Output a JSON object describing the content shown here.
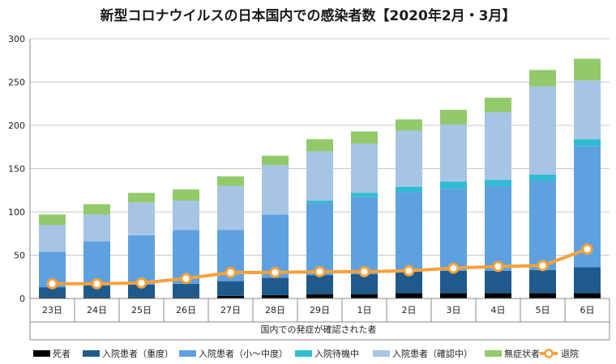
{
  "chart_data": {
    "type": "bar",
    "title": "新型コロナウイルスの日本国内での感染者数【2020年2月・3月】",
    "xlabel": "国内での発症が確認された者",
    "ylabel": "",
    "ylim": [
      0,
      300
    ],
    "yticks": [
      0,
      50,
      100,
      150,
      200,
      250,
      300
    ],
    "categories": [
      "23日",
      "24日",
      "25日",
      "26日",
      "27日",
      "28日",
      "29日",
      "1日",
      "2日",
      "3日",
      "4日",
      "5日",
      "6日"
    ],
    "stacked": true,
    "series": [
      {
        "name": "死者",
        "color": "#000000",
        "values": [
          1,
          1,
          1,
          1,
          3,
          4,
          5,
          5,
          6,
          6,
          6,
          6,
          6
        ]
      },
      {
        "name": "入院患者（重度）",
        "color": "#1f5a8c",
        "values": [
          12,
          14,
          15,
          16,
          17,
          20,
          22,
          23,
          25,
          26,
          26,
          27,
          30
        ]
      },
      {
        "name": "入院患者（小～中度）",
        "color": "#5ea1e0",
        "values": [
          41,
          51,
          57,
          62,
          59,
          73,
          83,
          89,
          92,
          95,
          98,
          103,
          140
        ]
      },
      {
        "name": "入院待機中",
        "color": "#2fbbd4",
        "values": [
          0,
          0,
          0,
          0,
          0,
          0,
          3,
          5,
          6,
          8,
          7,
          7,
          8
        ]
      },
      {
        "name": "入院患者（確認中）",
        "color": "#a7c4e4",
        "values": [
          31,
          31,
          38,
          34,
          51,
          57,
          57,
          57,
          65,
          66,
          78,
          102,
          68
        ]
      },
      {
        "name": "無症状者",
        "color": "#92c96b",
        "values": [
          12,
          12,
          11,
          13,
          11,
          11,
          14,
          14,
          13,
          17,
          17,
          19,
          25
        ]
      }
    ],
    "line": {
      "name": "退院",
      "color": "#f5a13c",
      "values": [
        17,
        17,
        18,
        23,
        30,
        30,
        31,
        31,
        32,
        35,
        37,
        38,
        57
      ]
    },
    "legend_position": "bottom",
    "grid": true
  }
}
